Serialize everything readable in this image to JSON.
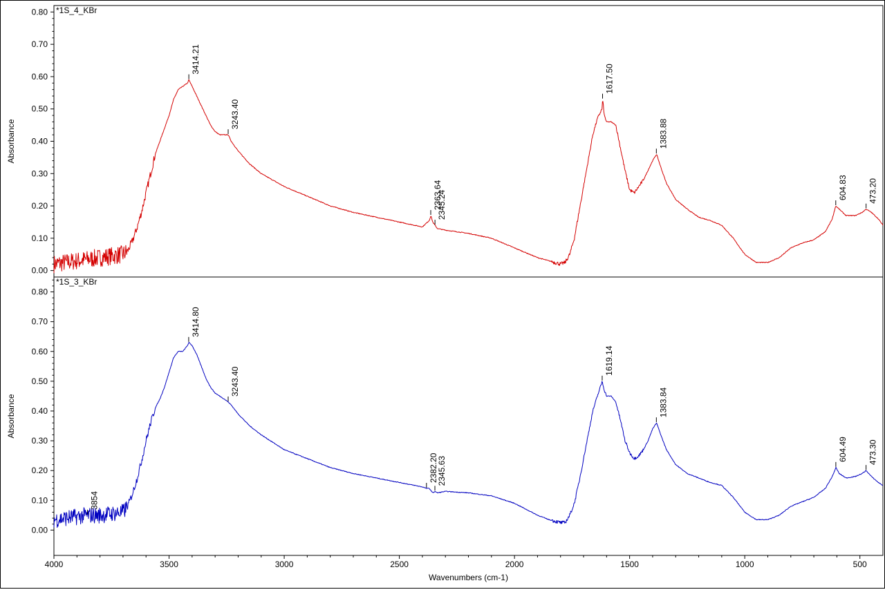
{
  "chart_data": [
    {
      "type": "line",
      "title": "*1S_4_KBr",
      "ylabel": "Absorbance",
      "xlabel": "",
      "xlim": [
        4000,
        400
      ],
      "ylim": [
        -0.02,
        0.82
      ],
      "yticks": [
        0.0,
        0.1,
        0.2,
        0.3,
        0.4,
        0.5,
        0.6,
        0.7,
        0.8
      ],
      "ytick_labels": [
        "0.00",
        "0.10",
        "0.20",
        "0.30",
        "0.40",
        "0.50",
        "0.60",
        "0.70",
        "0.80"
      ],
      "color": "#d40000",
      "series": [
        {
          "x": [
            4000,
            3900,
            3800,
            3700,
            3680,
            3660,
            3640,
            3620,
            3600,
            3580,
            3560,
            3540,
            3520,
            3500,
            3480,
            3460,
            3440,
            3420,
            3414,
            3400,
            3380,
            3360,
            3340,
            3320,
            3300,
            3280,
            3260,
            3243,
            3230,
            3200,
            3150,
            3100,
            3000,
            2900,
            2800,
            2700,
            2600,
            2500,
            2400,
            2370,
            2363,
            2355,
            2345,
            2335,
            2300,
            2200,
            2100,
            2000,
            1900,
            1850,
            1800,
            1780,
            1760,
            1740,
            1720,
            1700,
            1680,
            1660,
            1640,
            1620,
            1617,
            1610,
            1600,
            1580,
            1560,
            1540,
            1520,
            1500,
            1480,
            1460,
            1440,
            1420,
            1400,
            1383,
            1360,
            1340,
            1300,
            1250,
            1200,
            1150,
            1100,
            1050,
            1000,
            950,
            900,
            850,
            800,
            750,
            700,
            650,
            620,
            605,
            590,
            560,
            520,
            490,
            473,
            450,
            420,
            400
          ],
          "y": [
            0.02,
            0.03,
            0.04,
            0.05,
            0.06,
            0.09,
            0.13,
            0.18,
            0.24,
            0.3,
            0.36,
            0.4,
            0.44,
            0.48,
            0.53,
            0.56,
            0.57,
            0.58,
            0.59,
            0.57,
            0.54,
            0.51,
            0.48,
            0.45,
            0.43,
            0.42,
            0.42,
            0.42,
            0.4,
            0.37,
            0.33,
            0.3,
            0.26,
            0.23,
            0.2,
            0.18,
            0.165,
            0.15,
            0.135,
            0.155,
            0.17,
            0.15,
            0.14,
            0.13,
            0.125,
            0.115,
            0.1,
            0.07,
            0.04,
            0.03,
            0.02,
            0.025,
            0.05,
            0.1,
            0.18,
            0.26,
            0.34,
            0.42,
            0.47,
            0.5,
            0.53,
            0.48,
            0.46,
            0.46,
            0.45,
            0.38,
            0.31,
            0.25,
            0.24,
            0.26,
            0.28,
            0.31,
            0.34,
            0.36,
            0.31,
            0.27,
            0.22,
            0.19,
            0.165,
            0.155,
            0.14,
            0.1,
            0.05,
            0.025,
            0.025,
            0.04,
            0.07,
            0.085,
            0.095,
            0.12,
            0.16,
            0.2,
            0.19,
            0.17,
            0.17,
            0.18,
            0.19,
            0.18,
            0.16,
            0.14
          ]
        }
      ],
      "annotations": [
        {
          "x": 3414.21,
          "y": 0.59,
          "label": "3414.21"
        },
        {
          "x": 3243.4,
          "y": 0.42,
          "label": "3243.40"
        },
        {
          "x": 2363.64,
          "y": 0.17,
          "label": "2363.64"
        },
        {
          "x": 2345.24,
          "y": 0.14,
          "label": "2345.24"
        },
        {
          "x": 1617.5,
          "y": 0.53,
          "label": "1617.50"
        },
        {
          "x": 1383.88,
          "y": 0.36,
          "label": "1383.88"
        },
        {
          "x": 604.83,
          "y": 0.2,
          "label": "604.83"
        },
        {
          "x": 473.2,
          "y": 0.19,
          "label": "473.20"
        }
      ]
    },
    {
      "type": "line",
      "title": "*1S_3_KBr",
      "ylabel": "Absorbance",
      "xlabel": "Wavenumbers (cm-1)",
      "xlim": [
        4000,
        400
      ],
      "ylim": [
        -0.085,
        0.85
      ],
      "xticks": [
        4000,
        3500,
        3000,
        2500,
        2000,
        1500,
        1000,
        500
      ],
      "xtick_labels": [
        "4000",
        "3500",
        "3000",
        "2500",
        "2000",
        "1500",
        "1000",
        "500"
      ],
      "yticks": [
        0.0,
        0.1,
        0.2,
        0.3,
        0.4,
        0.5,
        0.6,
        0.7,
        0.8
      ],
      "ytick_labels": [
        "0.00",
        "0.10",
        "0.20",
        "0.30",
        "0.40",
        "0.50",
        "0.60",
        "0.70",
        "0.80"
      ],
      "color": "#0000c0",
      "series": [
        {
          "x": [
            4000,
            3900,
            3854,
            3800,
            3700,
            3680,
            3660,
            3640,
            3620,
            3600,
            3580,
            3560,
            3540,
            3520,
            3500,
            3480,
            3460,
            3440,
            3420,
            3414,
            3400,
            3380,
            3360,
            3340,
            3320,
            3300,
            3280,
            3260,
            3243,
            3230,
            3200,
            3150,
            3100,
            3000,
            2900,
            2800,
            2700,
            2600,
            2500,
            2400,
            2382,
            2370,
            2355,
            2345,
            2335,
            2300,
            2200,
            2100,
            2000,
            1900,
            1850,
            1800,
            1780,
            1760,
            1740,
            1720,
            1700,
            1680,
            1660,
            1640,
            1619,
            1610,
            1600,
            1580,
            1560,
            1540,
            1520,
            1500,
            1480,
            1460,
            1440,
            1420,
            1400,
            1383,
            1360,
            1340,
            1300,
            1250,
            1200,
            1150,
            1100,
            1050,
            1000,
            950,
            900,
            850,
            800,
            750,
            700,
            650,
            620,
            604,
            590,
            560,
            520,
            490,
            473,
            450,
            420,
            400
          ],
          "y": [
            0.035,
            0.045,
            0.05,
            0.05,
            0.06,
            0.08,
            0.12,
            0.17,
            0.23,
            0.3,
            0.36,
            0.41,
            0.44,
            0.48,
            0.53,
            0.58,
            0.6,
            0.6,
            0.62,
            0.63,
            0.62,
            0.59,
            0.55,
            0.51,
            0.48,
            0.46,
            0.45,
            0.44,
            0.43,
            0.42,
            0.39,
            0.35,
            0.32,
            0.27,
            0.24,
            0.21,
            0.19,
            0.175,
            0.16,
            0.145,
            0.14,
            0.14,
            0.125,
            0.13,
            0.125,
            0.13,
            0.125,
            0.115,
            0.09,
            0.05,
            0.035,
            0.025,
            0.025,
            0.05,
            0.09,
            0.16,
            0.24,
            0.32,
            0.4,
            0.45,
            0.5,
            0.47,
            0.45,
            0.45,
            0.43,
            0.37,
            0.3,
            0.26,
            0.24,
            0.25,
            0.27,
            0.3,
            0.34,
            0.36,
            0.31,
            0.27,
            0.22,
            0.19,
            0.175,
            0.16,
            0.15,
            0.11,
            0.06,
            0.035,
            0.035,
            0.05,
            0.08,
            0.095,
            0.11,
            0.14,
            0.18,
            0.21,
            0.19,
            0.175,
            0.18,
            0.19,
            0.2,
            0.18,
            0.16,
            0.15
          ]
        }
      ],
      "annotations": [
        {
          "x": 3854,
          "y": 0.05,
          "label": "3854"
        },
        {
          "x": 3414.8,
          "y": 0.63,
          "label": "3414.80"
        },
        {
          "x": 3243.4,
          "y": 0.43,
          "label": "3243.40"
        },
        {
          "x": 2382.2,
          "y": 0.14,
          "label": "2382.20"
        },
        {
          "x": 2345.63,
          "y": 0.13,
          "label": "2345.63"
        },
        {
          "x": 1619.14,
          "y": 0.5,
          "label": "1619.14"
        },
        {
          "x": 1383.84,
          "y": 0.36,
          "label": "1383.84"
        },
        {
          "x": 604.49,
          "y": 0.21,
          "label": "604.49"
        },
        {
          "x": 473.3,
          "y": 0.2,
          "label": "473.30"
        }
      ]
    }
  ]
}
